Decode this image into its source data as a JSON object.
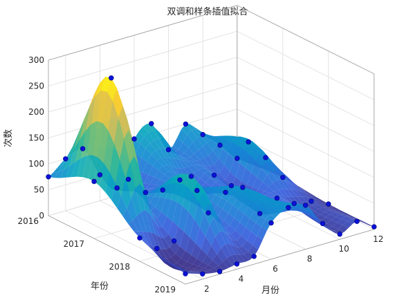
{
  "chart_data": {
    "type": "surface",
    "title": "双调和样条插值拟合",
    "xlabel": "月份",
    "ylabel": "年份",
    "zlabel": "次数",
    "x_ticks": [
      "2",
      "4",
      "6",
      "8",
      "10",
      "12"
    ],
    "y_ticks": [
      "2016",
      "2017",
      "2018",
      "2019"
    ],
    "z_ticks": [
      "0",
      "50",
      "100",
      "150",
      "200",
      "250",
      "300"
    ],
    "xlim": [
      1,
      12
    ],
    "ylim": [
      2016,
      2019
    ],
    "zlim": [
      0,
      300
    ],
    "grid": true,
    "colormap": "parula",
    "marker_color": "#0b12d6",
    "months": [
      1,
      2,
      3,
      4,
      5,
      6,
      7,
      8,
      9,
      10,
      11,
      12
    ],
    "years": [
      2016,
      2017,
      2018,
      2019
    ],
    "values": [
      [
        75,
        100,
        110,
        50,
        15,
        100,
        120,
        60,
        100,
        70,
        40,
        5
      ],
      [
        110,
        300,
        95,
        60,
        55,
        65,
        35,
        55,
        25,
        100,
        60,
        12
      ],
      [
        45,
        15,
        20,
        135,
        55,
        85,
        85,
        25,
        45,
        25,
        20,
        5
      ],
      [
        20,
        10,
        5,
        10,
        15,
        70,
        90,
        85,
        40,
        10,
        25,
        5
      ]
    ]
  }
}
